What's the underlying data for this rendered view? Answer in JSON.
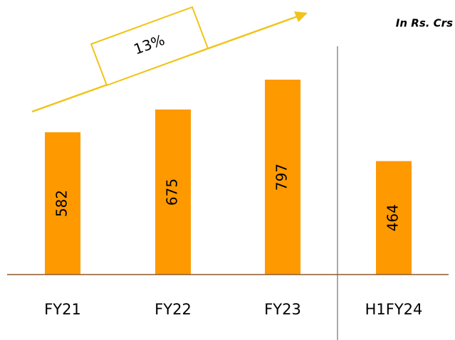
{
  "chart_data": {
    "type": "bar",
    "note": "In Rs. Crs",
    "growth_label": "13%",
    "categories": [
      "FY21",
      "FY22",
      "FY23",
      "H1FY24"
    ],
    "values": [
      582,
      675,
      797,
      464
    ],
    "color": "#ff9900"
  }
}
